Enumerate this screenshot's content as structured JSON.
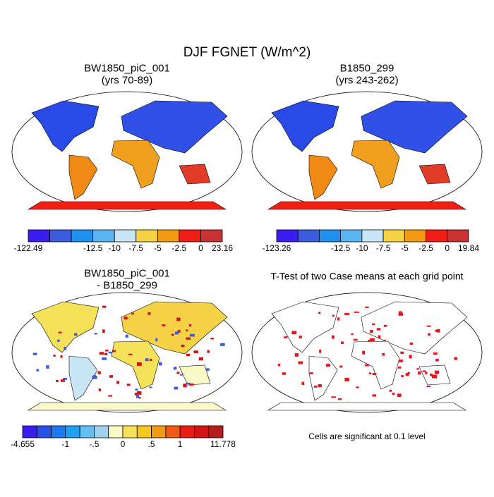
{
  "title": "DJF FGNET (W/m^2)",
  "panels": [
    {
      "title": [
        "BW1850_piC_001",
        "(yrs 70-89)"
      ],
      "colorbar": {
        "labels": [
          "-122.49",
          "-12.5",
          "-10",
          "-7.5",
          "-5",
          "-2.5",
          "0",
          "23.16"
        ],
        "colors": [
          "#3a1ef0",
          "#3c5ce0",
          "#1e90f0",
          "#5ab4f0",
          "#c8e6f5",
          "#f5d246",
          "#f59a14",
          "#f01e14",
          "#c83232"
        ]
      }
    },
    {
      "title": [
        "B1850_299",
        "(yrs 243-262)"
      ],
      "colorbar": {
        "labels": [
          "-123.26",
          "-12.5",
          "-10",
          "-7.5",
          "-5",
          "-2.5",
          "0",
          "19.84"
        ],
        "colors": [
          "#3a1ef0",
          "#3c5ce0",
          "#1e90f0",
          "#5ab4f0",
          "#c8e6f5",
          "#f5d246",
          "#f59a14",
          "#f01e14",
          "#c83232"
        ]
      }
    },
    {
      "title": [
        "BW1850_piC_001",
        "- B1850_299"
      ],
      "colorbar": {
        "labels": [
          "-4.655",
          "-1",
          "-.5",
          "0",
          ".5",
          "1",
          "11.778"
        ],
        "colors": [
          "#3a1ef0",
          "#2850e6",
          "#1e78f0",
          "#1ea0f0",
          "#64bef0",
          "#a0d2f0",
          "#fafac8",
          "#f5e15a",
          "#f5c81e",
          "#f59a14",
          "#f05a14",
          "#e61e14",
          "#d21414",
          "#b41e1e"
        ]
      }
    },
    {
      "title": [
        "T-Test of two Case means at each grid point"
      ]
    }
  ],
  "note": "Cells are significant at 0.1 level"
}
